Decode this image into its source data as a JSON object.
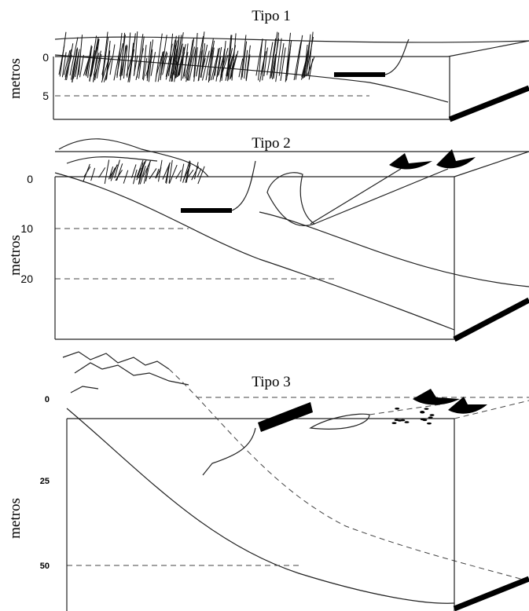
{
  "panels": [
    {
      "title": "Tipo 1",
      "axis_label": "metros",
      "depth_labels": [
        0,
        5
      ]
    },
    {
      "title": "Tipo 2",
      "axis_label": "metros",
      "depth_labels": [
        0,
        10,
        20
      ]
    },
    {
      "title": "Tipo 3",
      "axis_label": "metros",
      "depth_labels": [
        0,
        25,
        50
      ]
    }
  ]
}
